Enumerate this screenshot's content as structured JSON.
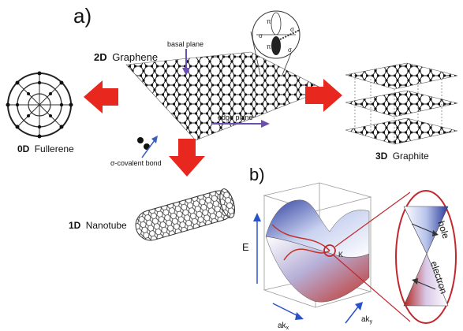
{
  "panel_a": {
    "label": "a)",
    "graphene": {
      "dim": "2D",
      "name": "Graphene"
    },
    "fullerene": {
      "dim": "0D",
      "name": "Fullerene"
    },
    "nanotube": {
      "dim": "1D",
      "name": "Nanotube"
    },
    "graphite": {
      "dim": "3D",
      "name": "Graphite"
    },
    "annotations": {
      "basal_plane": "basal plane",
      "edge_plane": "edge plane",
      "sigma_bond": "σ-covalent bond"
    },
    "orbital_inset": {
      "pi_top": "π",
      "pi_bottom": "π",
      "sigma_left": "σ",
      "sigma_right": "σ",
      "sigma_bottom": "σ"
    }
  },
  "panel_b": {
    "label": "b)",
    "axis_e": "E",
    "axis_kx": "ak",
    "axis_kx_sub": "x",
    "axis_ky": "ak",
    "axis_ky_sub": "y",
    "k_point": "K",
    "hole": "hole",
    "electron": "electron"
  },
  "colors": {
    "arrow_red": "#e8281e",
    "annotation_arrow": "#6a4fb0",
    "axis_blue": "#2a52c8",
    "highlight_circle": "#c0282e"
  }
}
